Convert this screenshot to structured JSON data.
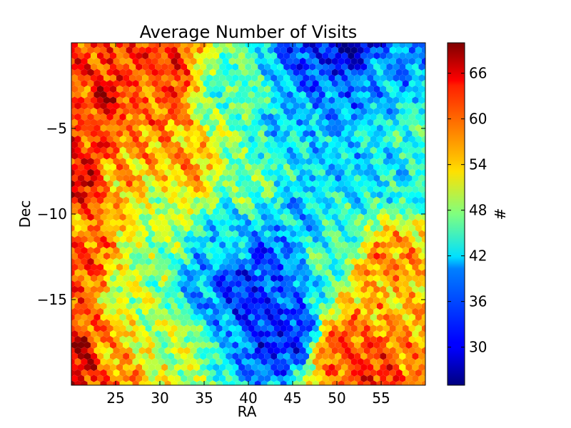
{
  "chart_data": {
    "type": "heatmap",
    "title": "Average Number of Visits",
    "xlabel": "RA",
    "ylabel": "Dec",
    "colorbar_label": "#",
    "colormap": "jet",
    "xlim": [
      20,
      60
    ],
    "ylim": [
      -20,
      0
    ],
    "clim": [
      25,
      70
    ],
    "xticks": [
      25,
      30,
      35,
      40,
      45,
      50,
      55
    ],
    "yticks": [
      -5,
      -10,
      -15
    ],
    "colorbar_ticks": [
      30,
      36,
      42,
      48,
      54,
      60,
      66
    ],
    "grid": false,
    "regions": [
      {
        "ra": 21,
        "dec": -3,
        "value": 60
      },
      {
        "ra": 23,
        "dec": -2,
        "value": 62
      },
      {
        "ra": 24,
        "dec": -3,
        "value": 66
      },
      {
        "ra": 27,
        "dec": -3,
        "value": 60
      },
      {
        "ra": 30,
        "dec": -2,
        "value": 62
      },
      {
        "ra": 21,
        "dec": -6,
        "value": 62
      },
      {
        "ra": 21,
        "dec": -8,
        "value": 66
      },
      {
        "ra": 21,
        "dec": -11,
        "value": 58
      },
      {
        "ra": 21,
        "dec": -13,
        "value": 62
      },
      {
        "ra": 21,
        "dec": -16,
        "value": 60
      },
      {
        "ra": 21,
        "dec": -18,
        "value": 68
      },
      {
        "ra": 21,
        "dec": -19,
        "value": 64
      },
      {
        "ra": 25,
        "dec": -8,
        "value": 56
      },
      {
        "ra": 26,
        "dec": -5,
        "value": 58
      },
      {
        "ra": 30,
        "dec": -10,
        "value": 50
      },
      {
        "ra": 33,
        "dec": -7,
        "value": 56
      },
      {
        "ra": 24,
        "dec": -18,
        "value": 56
      },
      {
        "ra": 30,
        "dec": -17,
        "value": 50
      },
      {
        "ra": 38,
        "dec": -3,
        "value": 46
      },
      {
        "ra": 40,
        "dec": -8,
        "value": 46
      },
      {
        "ra": 38,
        "dec": -12,
        "value": 40
      },
      {
        "ra": 35,
        "dec": -14,
        "value": 38
      },
      {
        "ra": 39,
        "dec": -14,
        "value": 32
      },
      {
        "ra": 42,
        "dec": -13,
        "value": 34
      },
      {
        "ra": 44,
        "dec": -17,
        "value": 32
      },
      {
        "ra": 45,
        "dec": -10,
        "value": 40
      },
      {
        "ra": 45,
        "dec": -5,
        "value": 40
      },
      {
        "ra": 51,
        "dec": -0.5,
        "value": 28
      },
      {
        "ra": 48,
        "dec": -1,
        "value": 33
      },
      {
        "ra": 50,
        "dec": -3,
        "value": 36
      },
      {
        "ra": 55,
        "dec": -2,
        "value": 38
      },
      {
        "ra": 52,
        "dec": -7,
        "value": 40
      },
      {
        "ra": 56,
        "dec": -7,
        "value": 42
      },
      {
        "ra": 50,
        "dec": -12,
        "value": 44
      },
      {
        "ra": 55,
        "dec": -13,
        "value": 58
      },
      {
        "ra": 57,
        "dec": -15,
        "value": 56
      },
      {
        "ra": 51,
        "dec": -18,
        "value": 60
      },
      {
        "ra": 55,
        "dec": -19,
        "value": 62
      },
      {
        "ra": 58,
        "dec": -19,
        "value": 58
      },
      {
        "ra": 59,
        "dec": -5,
        "value": 44
      },
      {
        "ra": 29,
        "dec": -13,
        "value": 48
      },
      {
        "ra": 26,
        "dec": -15,
        "value": 50
      }
    ]
  }
}
